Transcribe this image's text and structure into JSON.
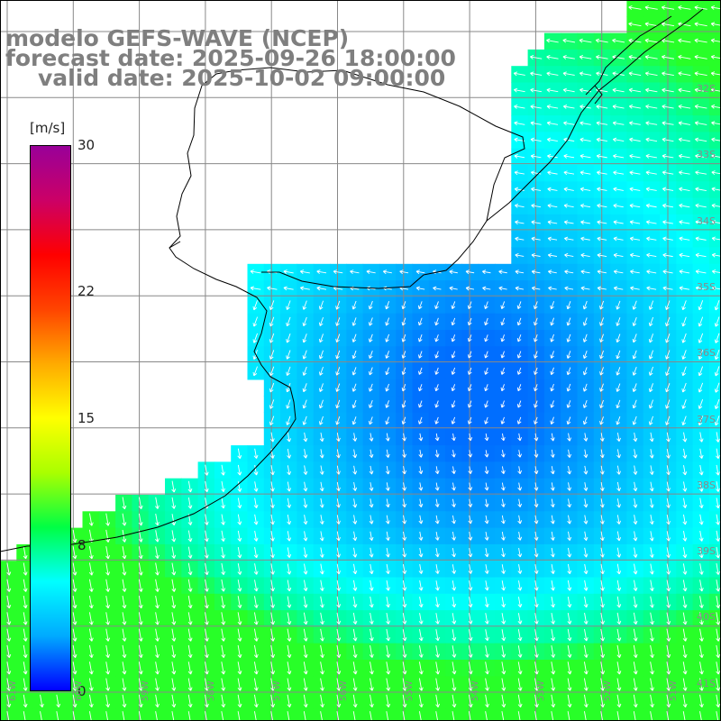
{
  "title": {
    "model": "modelo GEFS-WAVE (NCEP)",
    "forecast": "forecast date: 2025-09-26 18:00:00",
    "valid": "valid date: 2025-10-02 09:00:00"
  },
  "colorbar": {
    "unit": "[m/s]",
    "ticks": [
      "30",
      "22",
      "15",
      "8",
      "0"
    ],
    "tick_values": [
      30,
      22,
      15,
      8,
      0
    ],
    "range": [
      0,
      30
    ],
    "colors": [
      "#0000ff",
      "#00aaff",
      "#00ffff",
      "#00ff44",
      "#aaff00",
      "#ffff00",
      "#ffaa00",
      "#ff4400",
      "#ff0000",
      "#cc0066",
      "#990099"
    ]
  },
  "map": {
    "land_color": "#ffffff",
    "coast_color": "#000000",
    "grid_color": "#888888",
    "arrow_color": "#ffffff",
    "lat_labels": [
      "32S",
      "33S",
      "34S",
      "35S",
      "36S",
      "37S",
      "38S",
      "39S",
      "40S",
      "41S"
    ],
    "lon_labels": [
      "61W",
      "60W",
      "59W",
      "58W",
      "57W",
      "56W",
      "55W",
      "54W",
      "53W",
      "52W",
      "51W"
    ]
  }
}
